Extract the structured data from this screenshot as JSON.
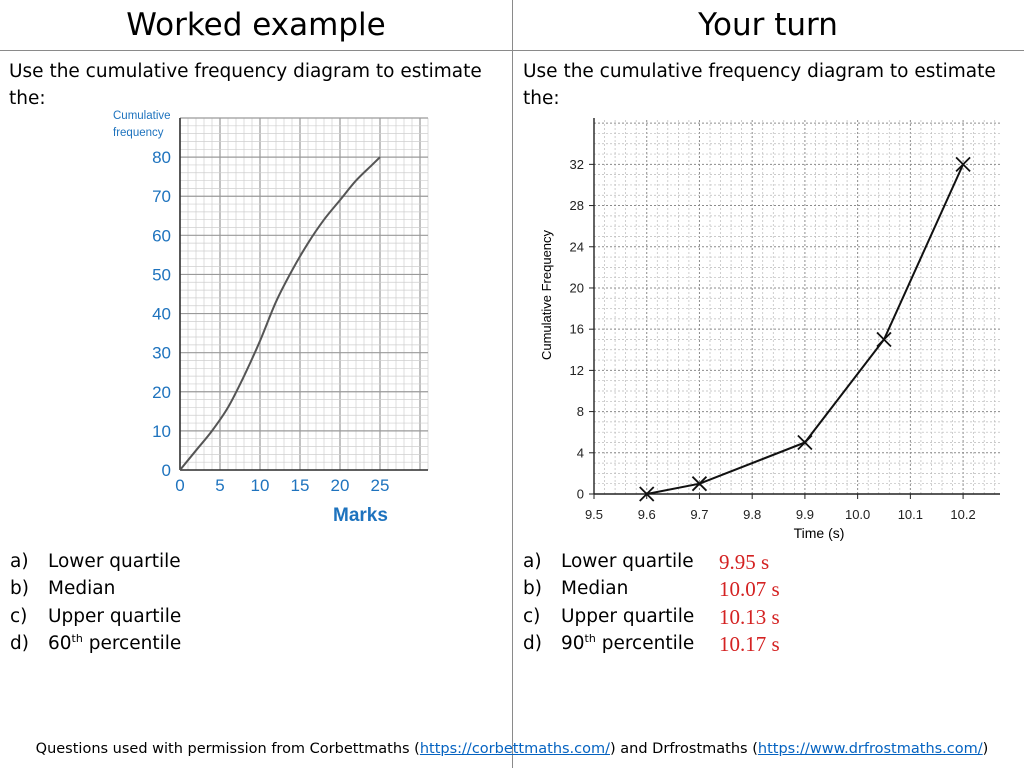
{
  "header": {
    "left_title": "Worked example",
    "right_title": "Your turn"
  },
  "left": {
    "intro": "Use the cumulative frequency diagram to estimate the:",
    "questions": [
      {
        "label": "a)",
        "text": "Lower quartile"
      },
      {
        "label": "b)",
        "text": "Median"
      },
      {
        "label": "c)",
        "text": "Upper quartile"
      },
      {
        "label": "d)",
        "pre": "60",
        "sup": "th",
        "post": " percentile"
      }
    ]
  },
  "right": {
    "intro": "Use the cumulative frequency diagram to estimate the:",
    "questions": [
      {
        "label": "a)",
        "text": "Lower quartile",
        "answer": "9.95 s"
      },
      {
        "label": "b)",
        "text": "Median",
        "answer": "10.07 s"
      },
      {
        "label": "c)",
        "text": "Upper quartile",
        "answer": "10.13 s"
      },
      {
        "label": "d)",
        "pre": "90",
        "sup": "th",
        "post": " percentile",
        "answer": "10.17 s"
      }
    ],
    "answer_color": "#d42222"
  },
  "footer": {
    "pre": "Questions used with permission from Corbettmaths (",
    "link1": "https://corbettmaths.com/",
    "mid": ") and Drfrostmaths (",
    "link2": "https://www.drfrostmaths.com/",
    "post": ")"
  },
  "chart_data": [
    {
      "type": "line",
      "xlabel": "Marks",
      "ylabel": "Cumulative frequency",
      "x_ticks": [
        0,
        5,
        10,
        15,
        20,
        25
      ],
      "y_ticks": [
        0,
        10,
        20,
        30,
        40,
        50,
        60,
        70,
        80
      ],
      "xlim": [
        0,
        31
      ],
      "ylim": [
        0,
        90
      ],
      "x": [
        0,
        2,
        4,
        6,
        8,
        10,
        12,
        14,
        16,
        18,
        20,
        22,
        24,
        25
      ],
      "y": [
        0,
        5,
        10,
        16,
        24,
        33,
        43,
        51,
        58,
        64,
        69,
        74,
        78,
        80
      ],
      "grid": true,
      "axis_color": "#1e73be",
      "curve_color": "#555555"
    },
    {
      "type": "line",
      "xlabel": "Time (s)",
      "ylabel": "Cumulative Frequency",
      "x_ticks": [
        "9.5",
        "9.6",
        "9.7",
        "9.8",
        "9.9",
        "10.0",
        "10.1",
        "10.2"
      ],
      "y_ticks": [
        0,
        4,
        8,
        12,
        16,
        20,
        24,
        28,
        32
      ],
      "xlim": [
        9.5,
        10.27
      ],
      "ylim": [
        0,
        36.5
      ],
      "x": [
        9.6,
        9.7,
        9.9,
        10.05,
        10.2
      ],
      "y": [
        0,
        1,
        5,
        15,
        32
      ],
      "markers": "x",
      "grid": true
    }
  ]
}
